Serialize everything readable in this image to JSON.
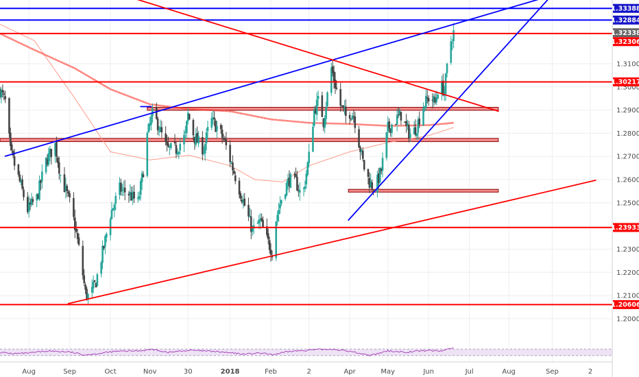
{
  "chart_data": {
    "type": "candlestick",
    "colors": {
      "up": "#26a69a",
      "down": "#444444",
      "support_resistance": "#ff0000",
      "channel": "#0000ff",
      "zone_fill": "#f48c8c",
      "ma_slow": "#ff3b30",
      "ma_fast": "#ff9a8a",
      "rsi_line": "#9c27b0",
      "rsi_band": "#ede3f5",
      "badge_blue": "#1515c8",
      "badge_red": "#ff0000",
      "badge_grey": "#666666"
    },
    "price_axis": {
      "range": [
        1.1905,
        1.3375
      ],
      "ticks": [
        "1.31000",
        "1.30000",
        "1.29000",
        "1.28000",
        "1.27000",
        "1.26000",
        "1.25000",
        "1.24000",
        "1.23000",
        "1.22000",
        "1.21000",
        "1.20000"
      ],
      "tick_values": [
        1.31,
        1.3,
        1.29,
        1.28,
        1.27,
        1.26,
        1.25,
        1.24,
        1.23,
        1.22,
        1.21,
        1.2
      ]
    },
    "time_axis": {
      "start": "2017-07-10",
      "labels": [
        "Aug",
        "Sep",
        "Oct",
        "Nov",
        "30",
        "2018",
        "Feb",
        "2",
        "Apr",
        "May",
        "Jun",
        "Jul",
        "Aug",
        "Sep",
        "2"
      ],
      "label_dates": [
        "2017-08-01",
        "2017-09-01",
        "2017-10-02",
        "2017-11-01",
        "2017-11-30",
        "2018-01-01",
        "2018-02-01",
        "2018-03-02",
        "2018-04-02",
        "2018-05-01",
        "2018-06-01",
        "2018-07-02",
        "2018-08-01",
        "2018-09-03",
        "2018-10-02"
      ]
    },
    "price_badges": [
      {
        "label": "1.33388",
        "value": 1.33388,
        "color": "blue"
      },
      {
        "label": "1.32884",
        "value": 1.32884,
        "color": "blue"
      },
      {
        "label": "1.32338",
        "value": 1.32338,
        "color": "grey"
      },
      {
        "label": "1.32306",
        "value": 1.32306,
        "color": "red"
      },
      {
        "label": "1.30217",
        "value": 1.30217,
        "color": "red"
      },
      {
        "label": "1.23933",
        "value": 1.23933,
        "color": "red"
      },
      {
        "label": "1.20606",
        "value": 1.20606,
        "color": "red"
      }
    ],
    "horizontal_lines": [
      {
        "value": 1.33388,
        "color": "channel"
      },
      {
        "value": 1.32884,
        "color": "channel"
      },
      {
        "value": 1.32306,
        "color": "support_resistance"
      },
      {
        "value": 1.30217,
        "color": "support_resistance"
      },
      {
        "value": 1.23933,
        "color": "support_resistance"
      },
      {
        "value": 1.20606,
        "color": "support_resistance"
      }
    ],
    "zones": [
      {
        "from_date": "2017-10-30",
        "to_date": "2018-07-24",
        "low": 1.2899,
        "high": 1.2912
      },
      {
        "from_date": "2017-07-10",
        "to_date": "2018-07-24",
        "low": 1.2764,
        "high": 1.2778
      },
      {
        "from_date": "2018-04-01",
        "to_date": "2018-07-24",
        "low": 1.2546,
        "high": 1.2558
      }
    ],
    "trendlines": [
      {
        "color": "channel",
        "from": [
          "2017-07-14",
          1.2701
        ],
        "to": [
          "2018-08-28",
          1.3385
        ]
      },
      {
        "color": "channel",
        "from": [
          "2018-04-01",
          1.2425
        ],
        "to": [
          "2018-09-01",
          1.3385
        ]
      },
      {
        "color": "support_resistance",
        "from": [
          "2017-10-18",
          1.3385
        ],
        "to": [
          "2018-07-24",
          1.2895
        ]
      },
      {
        "color": "support_resistance",
        "from": [
          "2017-08-31",
          1.2065
        ],
        "to": [
          "2018-10-06",
          1.2597
        ]
      },
      {
        "color": "channel",
        "from": [
          "2017-10-25",
          1.2915
        ],
        "to": [
          "2017-11-02",
          1.2915
        ]
      }
    ],
    "price_path": [
      [
        "2017-07-10",
        1.2985
      ],
      [
        "2017-07-14",
        1.2935
      ],
      [
        "2017-07-18",
        1.272
      ],
      [
        "2017-07-25",
        1.259
      ],
      [
        "2017-07-31",
        1.247
      ],
      [
        "2017-08-07",
        1.252
      ],
      [
        "2017-08-14",
        1.268
      ],
      [
        "2017-08-21",
        1.275
      ],
      [
        "2017-08-25",
        1.262
      ],
      [
        "2017-09-01",
        1.25
      ],
      [
        "2017-09-05",
        1.24
      ],
      [
        "2017-09-09",
        1.227
      ],
      [
        "2017-09-13",
        1.211
      ],
      [
        "2017-09-16",
        1.209
      ],
      [
        "2017-09-21",
        1.216
      ],
      [
        "2017-09-27",
        1.231
      ],
      [
        "2017-10-02",
        1.245
      ],
      [
        "2017-10-09",
        1.256
      ],
      [
        "2017-10-16",
        1.254
      ],
      [
        "2017-10-23",
        1.25
      ],
      [
        "2017-10-27",
        1.264
      ],
      [
        "2017-10-30",
        1.279
      ],
      [
        "2017-11-03",
        1.288
      ],
      [
        "2017-11-07",
        1.284
      ],
      [
        "2017-11-14",
        1.273
      ],
      [
        "2017-11-21",
        1.273
      ],
      [
        "2017-11-28",
        1.279
      ],
      [
        "2017-11-30",
        1.288
      ],
      [
        "2017-12-05",
        1.278
      ],
      [
        "2017-12-12",
        1.273
      ],
      [
        "2017-12-17",
        1.286
      ],
      [
        "2017-12-23",
        1.282
      ],
      [
        "2017-12-28",
        1.276
      ],
      [
        "2018-01-03",
        1.265
      ],
      [
        "2018-01-08",
        1.256
      ],
      [
        "2018-01-13",
        1.247
      ],
      [
        "2018-01-18",
        1.238
      ],
      [
        "2018-01-24",
        1.242
      ],
      [
        "2018-01-29",
        1.234
      ],
      [
        "2018-02-02",
        1.229
      ],
      [
        "2018-02-05",
        1.243
      ],
      [
        "2018-02-10",
        1.254
      ],
      [
        "2018-02-15",
        1.26
      ],
      [
        "2018-02-20",
        1.259
      ],
      [
        "2018-02-25",
        1.252
      ],
      [
        "2018-03-02",
        1.27
      ],
      [
        "2018-03-06",
        1.29
      ],
      [
        "2018-03-10",
        1.295
      ],
      [
        "2018-03-13",
        1.285
      ],
      [
        "2018-03-19",
        1.308
      ],
      [
        "2018-03-22",
        1.301
      ],
      [
        "2018-03-26",
        1.292
      ],
      [
        "2018-03-31",
        1.286
      ],
      [
        "2018-04-02",
        1.289
      ],
      [
        "2018-04-05",
        1.288
      ],
      [
        "2018-04-09",
        1.276
      ],
      [
        "2018-04-13",
        1.265
      ],
      [
        "2018-04-17",
        1.259
      ],
      [
        "2018-04-21",
        1.256
      ],
      [
        "2018-04-26",
        1.264
      ],
      [
        "2018-05-01",
        1.282
      ],
      [
        "2018-05-06",
        1.285
      ],
      [
        "2018-05-11",
        1.288
      ],
      [
        "2018-05-15",
        1.282
      ],
      [
        "2018-05-19",
        1.279
      ],
      [
        "2018-05-23",
        1.283
      ],
      [
        "2018-05-28",
        1.292
      ],
      [
        "2018-06-02",
        1.296
      ],
      [
        "2018-06-06",
        1.293
      ],
      [
        "2018-06-08",
        1.299
      ],
      [
        "2018-06-11",
        1.3
      ],
      [
        "2018-06-13",
        1.298
      ],
      [
        "2018-06-15",
        1.308
      ],
      [
        "2018-06-18",
        1.32
      ],
      [
        "2018-06-20",
        1.3234
      ]
    ],
    "ma_fast_path": [
      [
        "2017-07-10",
        1.327
      ],
      [
        "2017-08-05",
        1.32
      ],
      [
        "2017-09-05",
        1.295
      ],
      [
        "2017-10-02",
        1.272
      ],
      [
        "2017-11-01",
        1.2685
      ],
      [
        "2017-12-01",
        1.2705
      ],
      [
        "2018-01-01",
        1.266
      ],
      [
        "2018-01-20",
        1.26
      ],
      [
        "2018-02-10",
        1.259
      ],
      [
        "2018-03-02",
        1.266
      ],
      [
        "2018-04-02",
        1.272
      ],
      [
        "2018-05-01",
        1.276
      ],
      [
        "2018-06-01",
        1.279
      ],
      [
        "2018-06-20",
        1.2825
      ]
    ],
    "ma_slow_path": [
      [
        "2017-07-10",
        1.323
      ],
      [
        "2017-08-05",
        1.316
      ],
      [
        "2017-09-05",
        1.308
      ],
      [
        "2017-10-02",
        1.299
      ],
      [
        "2017-11-01",
        1.2925
      ],
      [
        "2017-11-30",
        1.2905
      ],
      [
        "2018-01-01",
        1.2895
      ],
      [
        "2018-02-01",
        1.286
      ],
      [
        "2018-03-02",
        1.2845
      ],
      [
        "2018-04-02",
        1.284
      ],
      [
        "2018-05-01",
        1.2832
      ],
      [
        "2018-06-01",
        1.2835
      ],
      [
        "2018-06-20",
        1.2845
      ]
    ],
    "rsi": {
      "range": [
        0,
        100
      ],
      "upper_band": 70,
      "lower_band": 30,
      "path": [
        [
          "2017-07-10",
          50
        ],
        [
          "2017-07-20",
          42
        ],
        [
          "2017-08-01",
          45
        ],
        [
          "2017-08-15",
          58
        ],
        [
          "2017-09-01",
          52
        ],
        [
          "2017-09-12",
          35
        ],
        [
          "2017-09-20",
          40
        ],
        [
          "2017-10-05",
          55
        ],
        [
          "2017-10-25",
          60
        ],
        [
          "2017-11-03",
          68
        ],
        [
          "2017-11-15",
          50
        ],
        [
          "2017-12-01",
          62
        ],
        [
          "2017-12-20",
          55
        ],
        [
          "2018-01-10",
          40
        ],
        [
          "2018-01-25",
          45
        ],
        [
          "2018-02-02",
          35
        ],
        [
          "2018-02-15",
          55
        ],
        [
          "2018-03-05",
          65
        ],
        [
          "2018-03-20",
          70
        ],
        [
          "2018-04-05",
          52
        ],
        [
          "2018-04-18",
          30
        ],
        [
          "2018-05-01",
          58
        ],
        [
          "2018-05-15",
          52
        ],
        [
          "2018-06-01",
          62
        ],
        [
          "2018-06-10",
          58
        ],
        [
          "2018-06-20",
          78
        ]
      ]
    }
  }
}
